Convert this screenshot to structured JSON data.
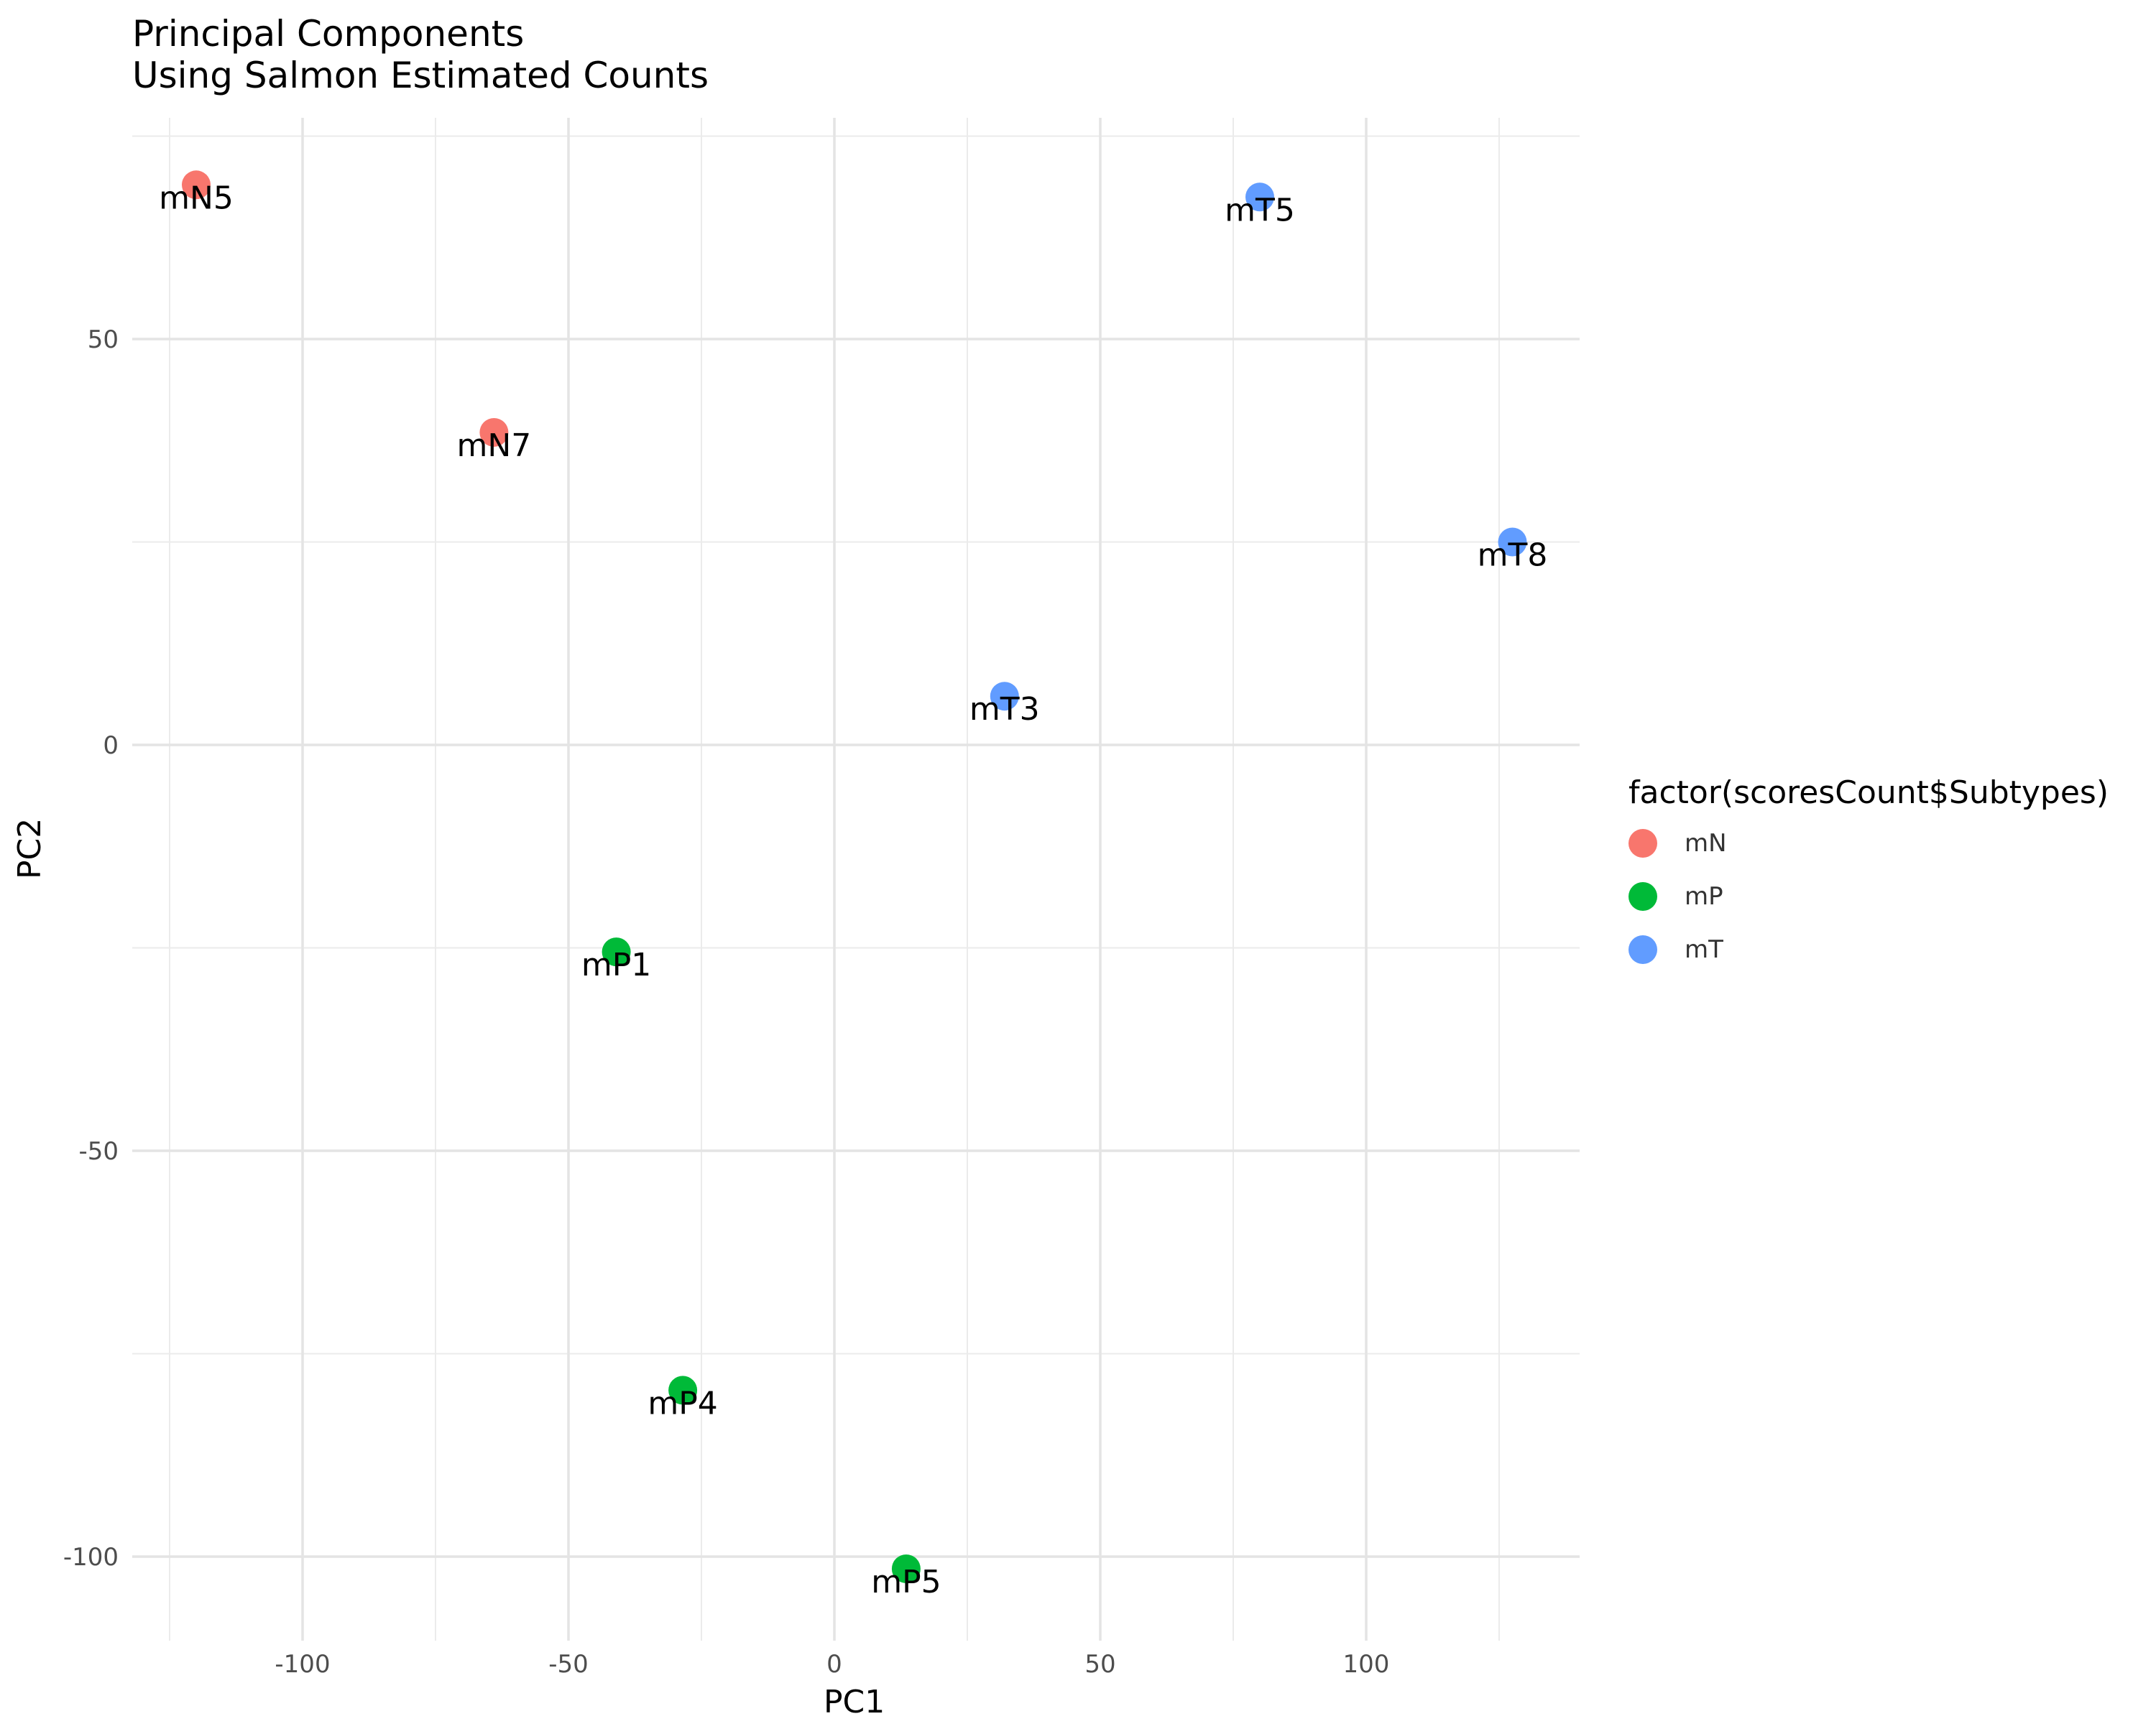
{
  "chart_data": {
    "type": "scatter",
    "title": "Principal Components",
    "subtitle": "Using Salmon Estimated Counts",
    "xlabel": "PC1",
    "ylabel": "PC2",
    "xlim": [
      -133,
      140
    ],
    "ylim": [
      -110,
      75
    ],
    "x_ticks": [
      -100,
      -50,
      0,
      50,
      100
    ],
    "y_ticks": [
      -100,
      -50,
      0,
      50
    ],
    "x_tick_labels": [
      "-100",
      "-50",
      "0",
      "50",
      "100"
    ],
    "y_tick_labels": [
      "-100",
      "-50",
      "0",
      "50"
    ],
    "grid": true,
    "legend": {
      "title": "factor(scoresCount$Subtypes)",
      "position": "right",
      "entries": [
        {
          "label": "mN",
          "color": "#F8766D"
        },
        {
          "label": "mP",
          "color": "#00BA38"
        },
        {
          "label": "mT",
          "color": "#619CFF"
        }
      ]
    },
    "points": [
      {
        "label": "mN5",
        "group": "mN",
        "x": -120,
        "y": 69
      },
      {
        "label": "mN7",
        "group": "mN",
        "x": -64,
        "y": 38.5
      },
      {
        "label": "mT5",
        "group": "mT",
        "x": 80,
        "y": 67.5
      },
      {
        "label": "mT8",
        "group": "mT",
        "x": 127.5,
        "y": 25
      },
      {
        "label": "mT3",
        "group": "mT",
        "x": 32,
        "y": 6
      },
      {
        "label": "mP1",
        "group": "mP",
        "x": -41,
        "y": -25.5
      },
      {
        "label": "mP4",
        "group": "mP",
        "x": -28.5,
        "y": -79.5
      },
      {
        "label": "mP5",
        "group": "mP",
        "x": 13.5,
        "y": -101.5
      }
    ]
  }
}
